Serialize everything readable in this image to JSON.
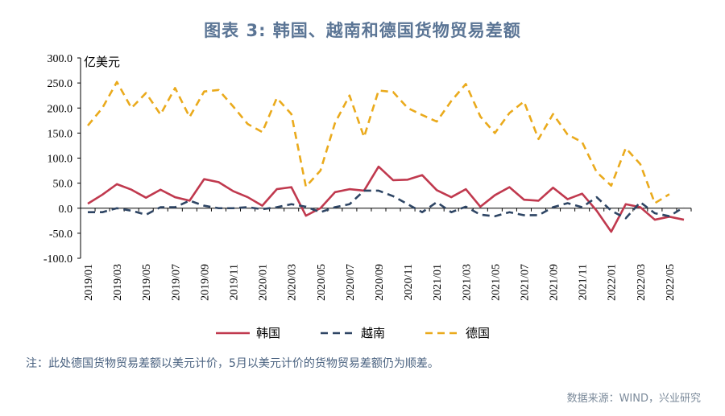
{
  "title": "图表 3:     韩国、越南和德国货物贸易差额",
  "note": "注：此处德国货物贸易差额以美元计价，5月以美元计价的货物贸易差额仍为顺差。",
  "source": "数据来源：WIND，兴业研究",
  "chart_data": {
    "type": "line",
    "ylabel": "亿美元",
    "ylim": [
      -100,
      300
    ],
    "yticks": [
      "300.0",
      "250.0",
      "200.0",
      "150.0",
      "100.0",
      "50.0",
      "0.0",
      "-50.0",
      "-100.0"
    ],
    "grid": false,
    "legend": "bottom",
    "x": [
      "2019/01",
      "2019/02",
      "2019/03",
      "2019/04",
      "2019/05",
      "2019/06",
      "2019/07",
      "2019/08",
      "2019/09",
      "2019/10",
      "2019/11",
      "2019/12",
      "2020/01",
      "2020/02",
      "2020/03",
      "2020/04",
      "2020/05",
      "2020/06",
      "2020/07",
      "2020/08",
      "2020/09",
      "2020/10",
      "2020/11",
      "2020/12",
      "2021/01",
      "2021/02",
      "2021/03",
      "2021/04",
      "2021/05",
      "2021/06",
      "2021/07",
      "2021/08",
      "2021/09",
      "2021/10",
      "2021/11",
      "2021/12",
      "2022/01",
      "2022/02",
      "2022/03",
      "2022/04",
      "2022/05",
      "2022/06"
    ],
    "xtick_labels": [
      "2019/01",
      "2019/03",
      "2019/05",
      "2019/07",
      "2019/09",
      "2019/11",
      "2020/01",
      "2020/03",
      "2020/05",
      "2020/07",
      "2020/09",
      "2020/11",
      "2021/01",
      "2021/03",
      "2021/05",
      "2021/07",
      "2021/09",
      "2021/11",
      "2022/01",
      "2022/03",
      "2022/05"
    ],
    "series": [
      {
        "name": "韩国",
        "color": "#c0394e",
        "dash": "solid",
        "values": [
          9,
          27,
          48,
          37,
          21,
          37,
          22,
          15,
          58,
          52,
          34,
          22,
          5,
          38,
          42,
          -15,
          0,
          32,
          38,
          35,
          83,
          56,
          57,
          66,
          36,
          22,
          38,
          3,
          26,
          42,
          17,
          15,
          41,
          18,
          29,
          -5,
          -47,
          8,
          2,
          -23,
          -17,
          -23
        ]
      },
      {
        "name": "越南",
        "color": "#2e4564",
        "dash": "dash",
        "values": [
          -8,
          -8,
          0,
          -5,
          -13,
          2,
          2,
          15,
          5,
          0,
          0,
          2,
          -2,
          2,
          8,
          3,
          -8,
          2,
          8,
          35,
          35,
          24,
          8,
          -8,
          12,
          -8,
          3,
          -13,
          -16,
          -8,
          -14,
          -14,
          2,
          10,
          2,
          22,
          -5,
          -20,
          12,
          -10,
          -16,
          2
        ]
      },
      {
        "name": "德国",
        "color": "#eaaa1c",
        "dash": "dash",
        "values": [
          165,
          200,
          252,
          200,
          230,
          187,
          240,
          182,
          233,
          236,
          203,
          168,
          152,
          220,
          188,
          43,
          75,
          170,
          225,
          142,
          235,
          232,
          200,
          186,
          173,
          214,
          248,
          183,
          150,
          190,
          213,
          138,
          188,
          147,
          132,
          72,
          45,
          120,
          88,
          10,
          28,
          null
        ]
      }
    ]
  }
}
